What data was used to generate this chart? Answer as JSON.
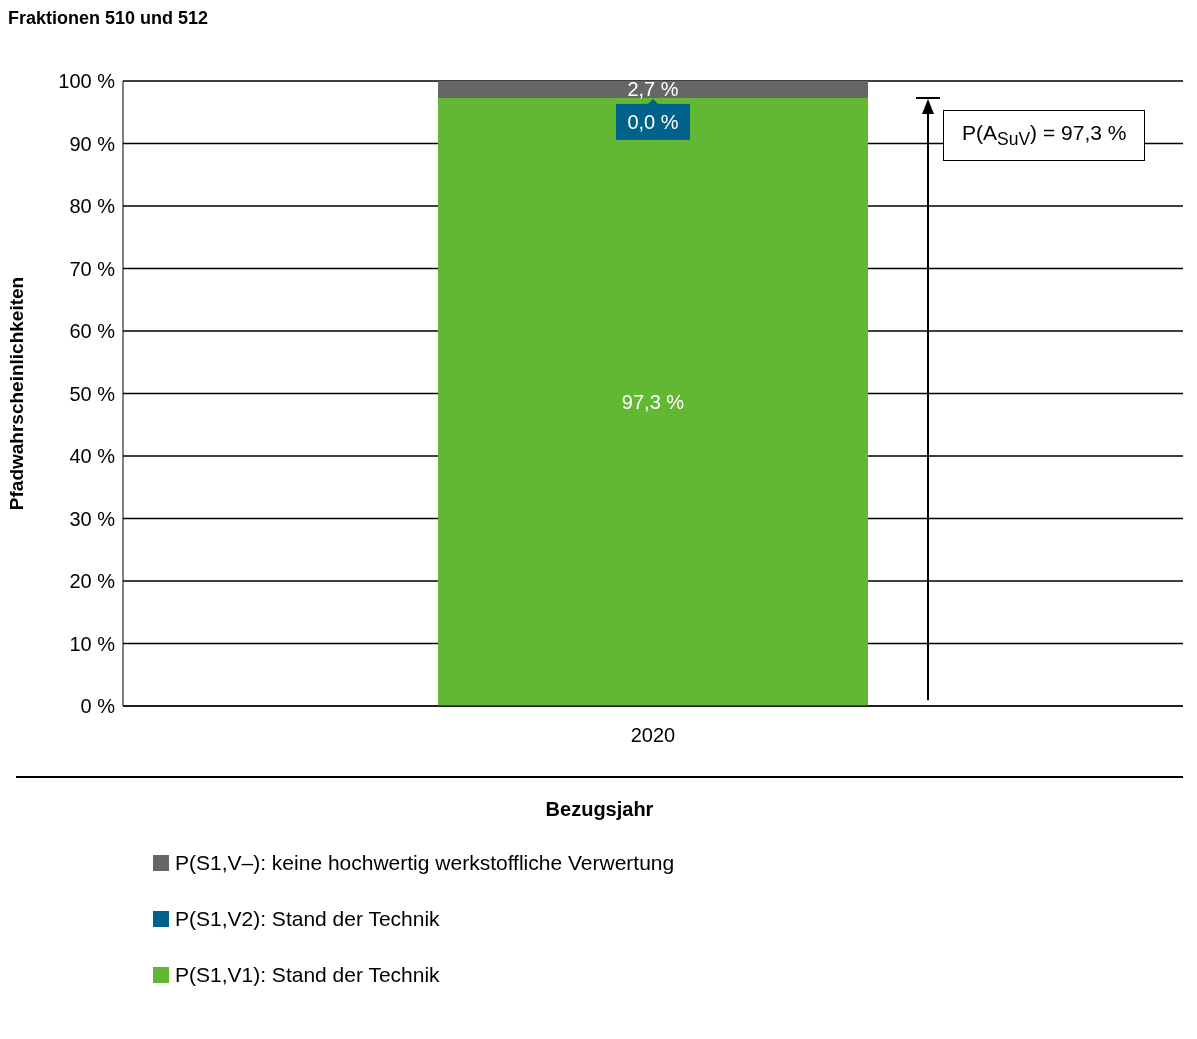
{
  "chart_data": {
    "type": "bar",
    "title": "Fraktionen 510 und 512",
    "xlabel": "Bezugsjahr",
    "ylabel": "Pfadwahrscheinlichkeiten",
    "categories": [
      "2020"
    ],
    "stacked": true,
    "series": [
      {
        "name": "P(S1,V1): Stand der Technik",
        "color": "#62b832",
        "values": [
          97.3
        ],
        "value_labels": [
          "97,3 %"
        ]
      },
      {
        "name": "P(S1,V2): Stand der Technik",
        "color": "#00628b",
        "values": [
          0.0
        ],
        "value_labels": [
          "0,0 %"
        ]
      },
      {
        "name": "P(S1,V–):  keine hochwertig werkstoffliche Verwertung",
        "color": "#666666",
        "values": [
          2.7
        ],
        "value_labels": [
          "2,7 %"
        ]
      }
    ],
    "ylim": [
      0,
      100
    ],
    "yticks": [
      {
        "value": 0,
        "label": "0 %"
      },
      {
        "value": 10,
        "label": "10 %"
      },
      {
        "value": 20,
        "label": "20 %"
      },
      {
        "value": 30,
        "label": "30 %"
      },
      {
        "value": 40,
        "label": "40 %"
      },
      {
        "value": 50,
        "label": "50 %"
      },
      {
        "value": 60,
        "label": "60 %"
      },
      {
        "value": 70,
        "label": "70 %"
      },
      {
        "value": 80,
        "label": "80 %"
      },
      {
        "value": 90,
        "label": "90 %"
      },
      {
        "value": 100,
        "label": "100 %"
      }
    ],
    "grid": "y",
    "legend": "bottom",
    "annotations": [
      "P(A$_{SuV}$) = 97,3 %"
    ]
  }
}
